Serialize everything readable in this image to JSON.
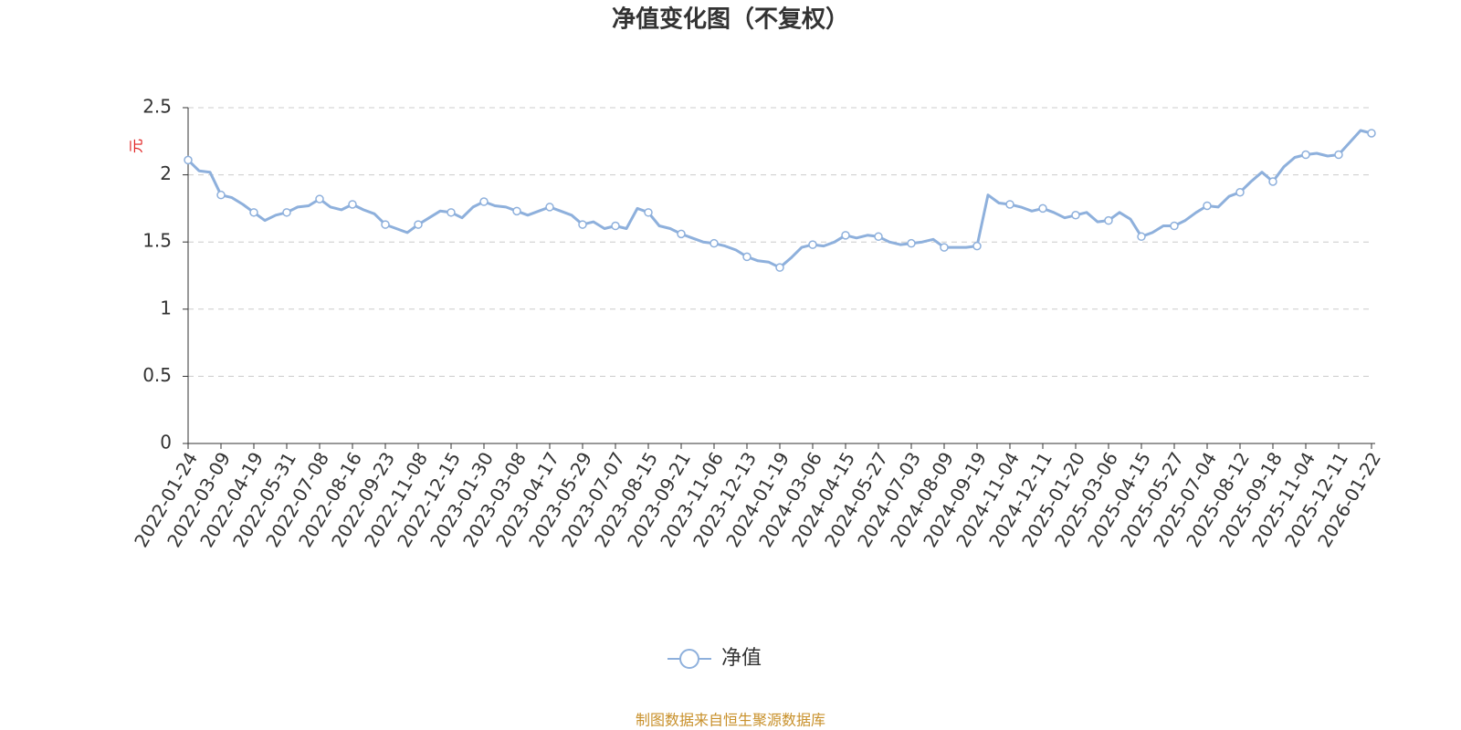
{
  "chart_data": {
    "type": "line",
    "title": "净值变化图（不复权）",
    "y_axis_label": "元",
    "source": "制图数据来自恒生聚源数据库",
    "categories": [
      "2022-01-24",
      null,
      null,
      "2022-03-09",
      null,
      null,
      "2022-04-19",
      null,
      null,
      "2022-05-31",
      null,
      null,
      "2022-07-08",
      null,
      null,
      "2022-08-16",
      null,
      null,
      "2022-09-23",
      null,
      null,
      "2022-11-08",
      null,
      null,
      "2022-12-15",
      null,
      null,
      "2023-01-30",
      null,
      null,
      "2023-03-08",
      null,
      null,
      "2023-04-17",
      null,
      null,
      "2023-05-29",
      null,
      null,
      "2023-07-07",
      null,
      null,
      "2023-08-15",
      null,
      null,
      "2023-09-21",
      null,
      null,
      "2023-11-06",
      null,
      null,
      "2023-12-13",
      null,
      null,
      "2024-01-19",
      null,
      null,
      "2024-03-06",
      null,
      null,
      "2024-04-15",
      null,
      null,
      "2024-05-27",
      null,
      null,
      "2024-07-03",
      null,
      null,
      "2024-08-09",
      null,
      null,
      "2024-09-19",
      null,
      null,
      "2024-11-04",
      null,
      null,
      "2024-12-11",
      null,
      null,
      "2025-01-20",
      null,
      null,
      "2025-03-06",
      null,
      null,
      "2025-04-15",
      null,
      null,
      "2025-05-27",
      null,
      null,
      "2025-07-04",
      null,
      null,
      "2025-08-12",
      null,
      null,
      "2025-09-18",
      null,
      null,
      "2025-11-04",
      null,
      null,
      "2025-12-11",
      null,
      null,
      "2026-01-22"
    ],
    "series": [
      {
        "name": "净值",
        "color": "#8eb0dc",
        "values": [
          2.11,
          2.03,
          2.02,
          1.85,
          1.83,
          1.78,
          1.72,
          1.66,
          1.7,
          1.72,
          1.76,
          1.77,
          1.82,
          1.76,
          1.74,
          1.78,
          1.74,
          1.71,
          1.63,
          1.6,
          1.57,
          1.63,
          1.68,
          1.73,
          1.72,
          1.68,
          1.76,
          1.8,
          1.77,
          1.76,
          1.73,
          1.7,
          1.73,
          1.76,
          1.73,
          1.7,
          1.63,
          1.65,
          1.6,
          1.62,
          1.6,
          1.75,
          1.72,
          1.62,
          1.6,
          1.56,
          1.53,
          1.5,
          1.49,
          1.47,
          1.44,
          1.39,
          1.36,
          1.35,
          1.31,
          1.38,
          1.46,
          1.48,
          1.47,
          1.5,
          1.55,
          1.53,
          1.55,
          1.54,
          1.5,
          1.48,
          1.49,
          1.5,
          1.52,
          1.46,
          1.46,
          1.46,
          1.47,
          1.85,
          1.79,
          1.78,
          1.76,
          1.73,
          1.75,
          1.72,
          1.68,
          1.7,
          1.72,
          1.65,
          1.66,
          1.72,
          1.67,
          1.54,
          1.57,
          1.62,
          1.62,
          1.66,
          1.72,
          1.77,
          1.76,
          1.84,
          1.87,
          1.95,
          2.02,
          1.95,
          2.06,
          2.13,
          2.15,
          2.16,
          2.14,
          2.15,
          2.24,
          2.33,
          2.31
        ]
      }
    ],
    "ylim": [
      0,
      2.5
    ],
    "yticks": [
      0,
      0.5,
      1,
      1.5,
      2,
      2.5
    ],
    "grid": true,
    "legend": "bottom"
  }
}
